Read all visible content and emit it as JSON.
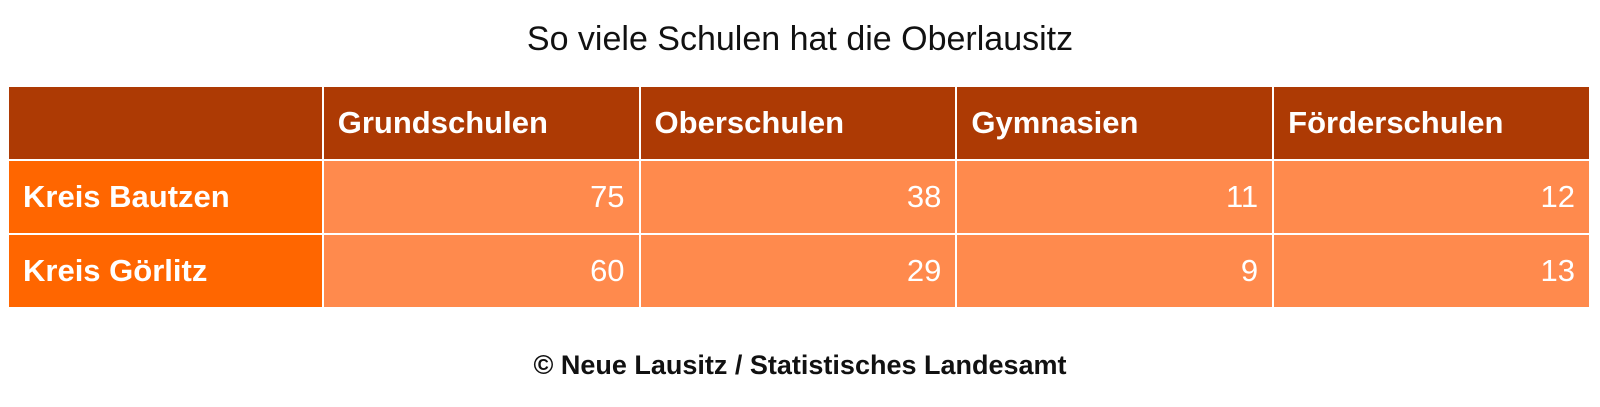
{
  "title": "So viele Schulen hat die Oberlausitz",
  "source": "© Neue Lausitz / Statistisches Landesamt",
  "colors": {
    "header_bg": "#ad3a04",
    "row_header_bg": "#ff6600",
    "cell_bg": "#ff8a4d",
    "text_light": "#ffffff"
  },
  "chart_data": {
    "type": "table",
    "title": "So viele Schulen hat die Oberlausitz",
    "columns": [
      "Grundschulen",
      "Oberschulen",
      "Gymnasien",
      "Förderschulen"
    ],
    "rows": [
      {
        "label": "Kreis Bautzen",
        "values": [
          75,
          38,
          11,
          12
        ]
      },
      {
        "label": "Kreis Görlitz",
        "values": [
          60,
          29,
          9,
          13
        ]
      }
    ]
  }
}
